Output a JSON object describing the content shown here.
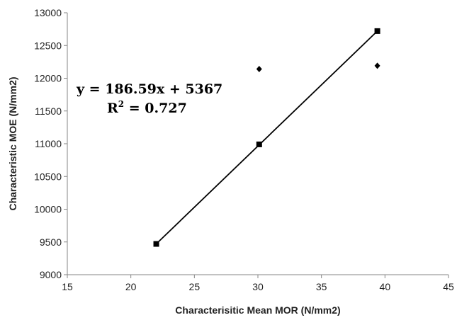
{
  "chart_data": {
    "type": "scatter",
    "xlabel": "Characterisitic Mean MOR (N/mm2)",
    "ylabel": "Characteristic MOE (N/mm2)",
    "xlim": [
      15,
      45
    ],
    "ylim": [
      9000,
      13000
    ],
    "xticks": [
      "15",
      "20",
      "25",
      "30",
      "35",
      "40",
      "45"
    ],
    "yticks": [
      "9000",
      "9500",
      "10000",
      "10500",
      "11000",
      "11500",
      "12000",
      "12500",
      "13000"
    ],
    "grid": false,
    "series": [
      {
        "marker": "square",
        "x": [
          22,
          30.1,
          39.4
        ],
        "y": [
          9470,
          10990,
          12720
        ],
        "trendline": {
          "x": [
            22,
            39.4
          ],
          "y": [
            9470,
            12720
          ]
        }
      },
      {
        "marker": "diamond",
        "x": [
          30.1,
          39.4
        ],
        "y": [
          12140,
          12190
        ]
      }
    ],
    "annotation": {
      "equation": "y = 186.59x + 5367",
      "r2_label": "R",
      "r2_sup": "2",
      "r2_value": " = 0.727"
    },
    "colors": {
      "marker": "#000000",
      "axis": "#868686"
    }
  }
}
